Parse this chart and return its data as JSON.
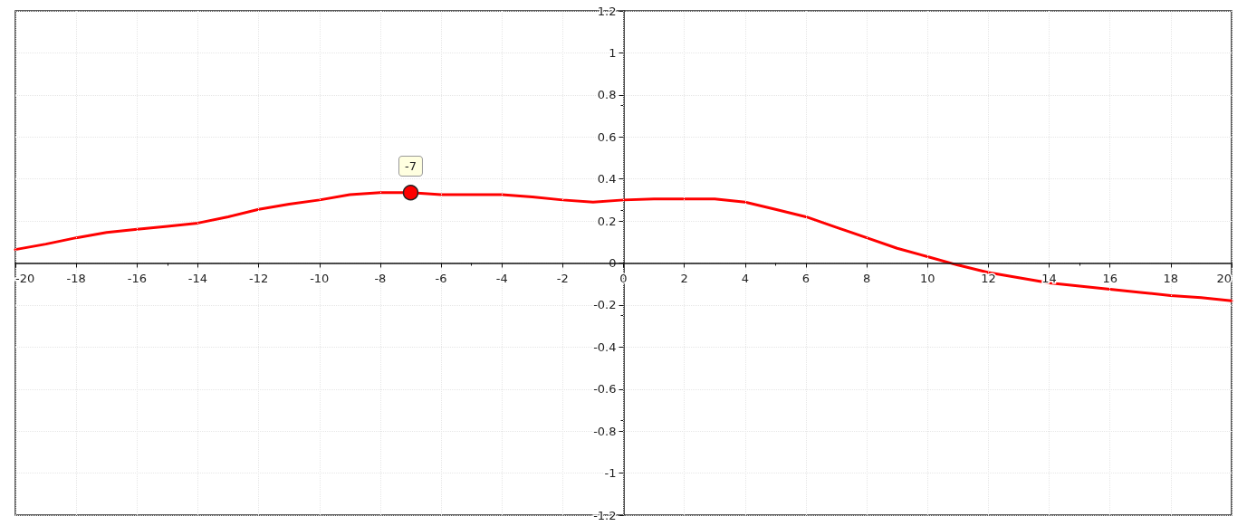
{
  "chart_data": {
    "type": "line",
    "x": [
      -20,
      -19,
      -18,
      -17,
      -16,
      -15,
      -14,
      -13,
      -12,
      -11,
      -10,
      -9,
      -8,
      -7,
      -6,
      -5,
      -4,
      -3,
      -2,
      -1,
      0,
      1,
      2,
      3,
      4,
      5,
      6,
      7,
      8,
      9,
      10,
      11,
      12,
      13,
      14,
      15,
      16,
      17,
      18,
      19,
      20
    ],
    "series": [
      {
        "color": "#ff0000",
        "values": [
          0.064,
          0.09,
          0.12,
          0.145,
          0.16,
          0.175,
          0.19,
          0.22,
          0.255,
          0.28,
          0.3,
          0.325,
          0.335,
          0.335,
          0.325,
          0.325,
          0.325,
          0.315,
          0.3,
          0.29,
          0.3,
          0.305,
          0.305,
          0.305,
          0.29,
          0.255,
          0.22,
          0.17,
          0.12,
          0.07,
          0.03,
          -0.01,
          -0.045,
          -0.07,
          -0.095,
          -0.11,
          -0.125,
          -0.14,
          -0.155,
          -0.165,
          -0.18
        ]
      }
    ],
    "xlim": [
      -20,
      20
    ],
    "xticks": [
      -20,
      -18,
      -16,
      -14,
      -12,
      -10,
      -8,
      -6,
      -4,
      -2,
      0,
      2,
      4,
      6,
      8,
      10,
      12,
      14,
      16,
      18,
      20
    ],
    "ylim": [
      -1.2,
      1.2
    ],
    "yticks": [
      -1.2,
      -1,
      -0.8,
      -0.6,
      -0.4,
      -0.2,
      0,
      0.2,
      0.4,
      0.6,
      0.8,
      1,
      1.2
    ],
    "annotations": [
      {
        "text": "-7",
        "x": -7,
        "y": 0.335
      }
    ],
    "grid": true,
    "marker": "none",
    "line_style": "solid"
  }
}
